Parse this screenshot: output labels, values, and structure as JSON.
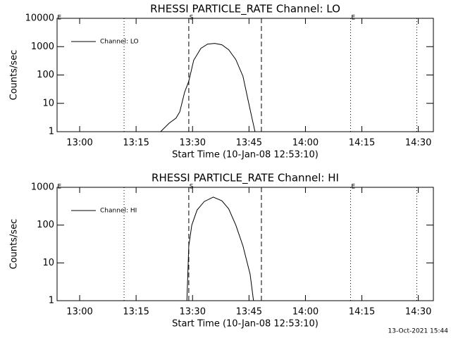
{
  "chart_data": [
    {
      "type": "line",
      "title": "RHESSI PARTICLE_RATE Channel: LO",
      "xlabel": "Start Time (10-Jan-08 12:53:10)",
      "ylabel": "Counts/sec",
      "x": [
        801.5,
        803.8,
        805.6,
        806.6,
        807.9,
        809.0,
        810.3,
        812.2,
        814.0,
        815.9,
        817.8,
        819.6,
        821.5,
        823.4,
        824.7,
        825.8,
        826.6
      ],
      "series": [
        {
          "name": "Channel: LO",
          "color": "#000000",
          "values": [
            1,
            2,
            3,
            5,
            25,
            60,
            330,
            870,
            1230,
            1300,
            1160,
            780,
            350,
            90,
            14,
            3,
            1
          ]
        }
      ],
      "xlim": [
        774,
        874
      ],
      "ylim": [
        1,
        10000
      ],
      "log_y": true,
      "legend": "upper left",
      "xticks": [
        {
          "value": 780,
          "label": "13:00"
        },
        {
          "value": 795,
          "label": "13:15"
        },
        {
          "value": 810,
          "label": "13:30"
        },
        {
          "value": 825,
          "label": "13:45"
        },
        {
          "value": 840,
          "label": "14:00"
        },
        {
          "value": 855,
          "label": "14:15"
        },
        {
          "value": 870,
          "label": "14:30"
        }
      ],
      "yticks": [
        1,
        10,
        100,
        1000,
        10000
      ],
      "vlines": [
        {
          "x": 791.8,
          "style": "dotted"
        },
        {
          "x": 809.0,
          "style": "dashed"
        },
        {
          "x": 828.3,
          "style": "dashed"
        },
        {
          "x": 852.0,
          "style": "dotted"
        },
        {
          "x": 869.6,
          "style": "dotted"
        }
      ],
      "annotations": [
        {
          "text": "E",
          "x": 774.6
        },
        {
          "text": "S",
          "x": 809.7
        },
        {
          "text": "E",
          "x": 852.7
        }
      ]
    },
    {
      "type": "line",
      "title": "RHESSI PARTICLE_RATE Channel: HI",
      "xlabel": "Start Time (10-Jan-08 12:53:10)",
      "ylabel": "Counts/sec",
      "x": [
        808.5,
        809.0,
        809.8,
        811.2,
        813.1,
        815.5,
        817.8,
        819.6,
        821.5,
        823.4,
        825.3,
        826.2
      ],
      "series": [
        {
          "name": "Channel: HI",
          "color": "#000000",
          "values": [
            1,
            28,
            100,
            250,
            420,
            550,
            440,
            270,
            100,
            28,
            5,
            1
          ]
        }
      ],
      "xlim": [
        774,
        874
      ],
      "ylim": [
        1,
        1000
      ],
      "log_y": true,
      "legend": "upper left",
      "xticks": [
        {
          "value": 780,
          "label": "13:00"
        },
        {
          "value": 795,
          "label": "13:15"
        },
        {
          "value": 810,
          "label": "13:30"
        },
        {
          "value": 825,
          "label": "13:45"
        },
        {
          "value": 840,
          "label": "14:00"
        },
        {
          "value": 855,
          "label": "14:15"
        },
        {
          "value": 870,
          "label": "14:30"
        }
      ],
      "yticks": [
        1,
        10,
        100,
        1000
      ],
      "vlines": [
        {
          "x": 791.8,
          "style": "dotted"
        },
        {
          "x": 809.0,
          "style": "dashed"
        },
        {
          "x": 828.3,
          "style": "dashed"
        },
        {
          "x": 852.0,
          "style": "dotted"
        },
        {
          "x": 869.6,
          "style": "dotted"
        }
      ],
      "annotations": [
        {
          "text": "E",
          "x": 774.6
        },
        {
          "text": "S",
          "x": 809.7
        },
        {
          "text": "E",
          "x": 852.7
        }
      ]
    }
  ],
  "footer": "13-Oct-2021 15:44"
}
